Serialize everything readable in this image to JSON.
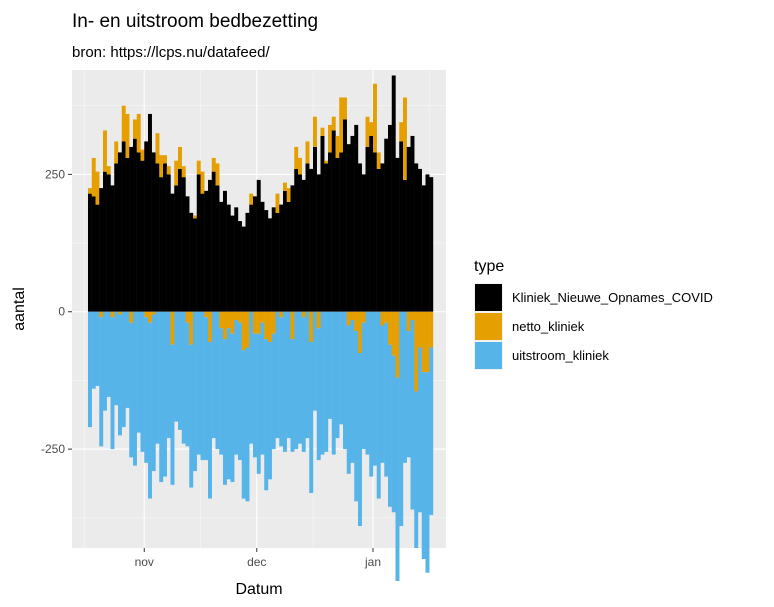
{
  "chart_data": {
    "type": "bar",
    "title": "In- en uitstroom bedbezetting",
    "subtitle": "bron: https://lcps.nu/datafeed/",
    "xlabel": "Datum",
    "ylabel": "aantal",
    "x_ticks": [
      "nov",
      "dec",
      "jan"
    ],
    "y_ticks": [
      -250,
      0,
      250
    ],
    "ylim": [
      -430,
      440
    ],
    "grid": true,
    "legend": {
      "title": "type",
      "placement": "right"
    },
    "x_start_date": "2020-10-17",
    "series": [
      {
        "name": "Kliniek_Nieuwe_Opnames_COVID",
        "color": "#000000",
        "values": [
          215,
          210,
          195,
          225,
          255,
          250,
          230,
          270,
          290,
          310,
          280,
          300,
          315,
          290,
          275,
          310,
          360,
          290,
          270,
          245,
          270,
          250,
          215,
          230,
          260,
          245,
          210,
          180,
          170,
          250,
          215,
          220,
          240,
          255,
          230,
          200,
          220,
          195,
          175,
          190,
          165,
          155,
          180,
          195,
          210,
          240,
          200,
          185,
          170,
          190,
          180,
          195,
          220,
          200,
          230,
          260,
          250,
          240,
          270,
          260,
          300,
          250,
          320,
          270,
          290,
          330,
          280,
          290,
          350,
          305,
          320,
          340,
          270,
          250,
          300,
          320,
          290,
          260,
          270,
          315,
          340,
          430,
          280,
          310,
          240,
          300,
          320,
          270,
          260,
          230,
          250,
          245
        ]
      },
      {
        "name": "netto_kliniek",
        "color": "#E69F00",
        "values": [
          10,
          70,
          60,
          -10,
          75,
          15,
          -10,
          40,
          -5,
          65,
          80,
          -20,
          35,
          70,
          20,
          -10,
          -20,
          -5,
          55,
          40,
          15,
          15,
          -60,
          45,
          40,
          20,
          -20,
          -60,
          5,
          25,
          40,
          -10,
          -55,
          25,
          40,
          -30,
          -50,
          -30,
          -40,
          -15,
          -20,
          -70,
          -65,
          20,
          -40,
          -40,
          -20,
          -50,
          -55,
          -40,
          35,
          -10,
          15,
          25,
          -50,
          40,
          30,
          -10,
          40,
          -55,
          55,
          -30,
          15,
          5,
          50,
          25,
          40,
          100,
          40,
          -25,
          -15,
          -35,
          -75,
          -20,
          55,
          25,
          125,
          30,
          -25,
          -20,
          -60,
          -80,
          -120,
          35,
          150,
          -35,
          -15,
          -145,
          -65,
          -110,
          -110,
          -65
        ]
      },
      {
        "name": "uitstroom_kliniek",
        "color": "#56B4E9",
        "values": [
          -210,
          -140,
          -135,
          -235,
          -180,
          -155,
          -240,
          -170,
          -220,
          -210,
          -175,
          -245,
          -280,
          -220,
          -255,
          -265,
          -320,
          -285,
          -240,
          -310,
          -300,
          -230,
          -255,
          -200,
          -215,
          -240,
          -225,
          -260,
          -290,
          -260,
          -270,
          -260,
          -285,
          -230,
          -250,
          -230,
          -265,
          -275,
          -270,
          -245,
          -250,
          -270,
          -280,
          -240,
          -225,
          -255,
          -240,
          -275,
          -250,
          -210,
          -230,
          -235,
          -255,
          -230,
          -205,
          -250,
          -240,
          -245,
          -230,
          -275,
          -180,
          -240,
          -260,
          -255,
          -195,
          -260,
          -230,
          -205,
          -250,
          -270,
          -260,
          -310,
          -315,
          -230,
          -260,
          -300,
          -280,
          -340,
          -250,
          -280,
          -295,
          -285,
          -370,
          -390,
          -275,
          -230,
          -345,
          -285,
          -300,
          -340,
          -365,
          -305
        ]
      }
    ]
  }
}
